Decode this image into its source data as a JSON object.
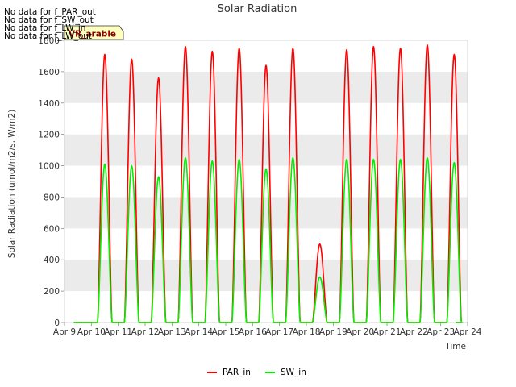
{
  "chart_data": {
    "type": "line",
    "title": "Solar Radiation",
    "xlabel": "Time",
    "ylabel": "Solar Radiation (umol/m2/s, W/m2)",
    "ylim": [
      0,
      1800
    ],
    "xlim": [
      9,
      24
    ],
    "y_ticks": [
      0,
      200,
      400,
      600,
      800,
      1000,
      1200,
      1400,
      1600,
      1800
    ],
    "x_ticks": [
      "Apr 9",
      "Apr 10",
      "Apr 11",
      "Apr 12",
      "Apr 13",
      "Apr 14",
      "Apr 15",
      "Apr 16",
      "Apr 17",
      "Apr 18",
      "Apr 19",
      "Apr 20",
      "Apr 21",
      "Apr 22",
      "Apr 23",
      "Apr 24"
    ],
    "grid": "horizontal bands",
    "legend_position": "bottom-center",
    "no_data_messages": [
      "No data for f_PAR_out",
      "No data for f_SW_out",
      "No data for f_LW_in",
      "No data for f_LW_out"
    ],
    "badge_text": "VR_arable",
    "series": [
      {
        "name": "PAR_in",
        "color": "#ff0000",
        "day_peaks": [
          {
            "day": "Apr 10",
            "peak": 1710
          },
          {
            "day": "Apr 11",
            "peak": 1680
          },
          {
            "day": "Apr 12",
            "peak": 1560
          },
          {
            "day": "Apr 13",
            "peak": 1760
          },
          {
            "day": "Apr 14",
            "peak": 1730
          },
          {
            "day": "Apr 15",
            "peak": 1750
          },
          {
            "day": "Apr 16",
            "peak": 1640
          },
          {
            "day": "Apr 17",
            "peak": 1750
          },
          {
            "day": "Apr 18",
            "peak": 500
          },
          {
            "day": "Apr 19",
            "peak": 1740
          },
          {
            "day": "Apr 20",
            "peak": 1760
          },
          {
            "day": "Apr 21",
            "peak": 1750
          },
          {
            "day": "Apr 22",
            "peak": 1770
          },
          {
            "day": "Apr 23",
            "peak": 1710
          }
        ]
      },
      {
        "name": "SW_in",
        "color": "#00ee00",
        "day_peaks": [
          {
            "day": "Apr 10",
            "peak": 1010
          },
          {
            "day": "Apr 11",
            "peak": 1000
          },
          {
            "day": "Apr 12",
            "peak": 930
          },
          {
            "day": "Apr 13",
            "peak": 1050
          },
          {
            "day": "Apr 14",
            "peak": 1030
          },
          {
            "day": "Apr 15",
            "peak": 1040
          },
          {
            "day": "Apr 16",
            "peak": 980
          },
          {
            "day": "Apr 17",
            "peak": 1050
          },
          {
            "day": "Apr 18",
            "peak": 290
          },
          {
            "day": "Apr 19",
            "peak": 1040
          },
          {
            "day": "Apr 20",
            "peak": 1040
          },
          {
            "day": "Apr 21",
            "peak": 1040
          },
          {
            "day": "Apr 22",
            "peak": 1050
          },
          {
            "day": "Apr 23",
            "peak": 1020
          }
        ]
      }
    ]
  },
  "colors": {
    "band": "#ebebeb",
    "background": "#ffffff",
    "axis": "#aaaaaa",
    "badge_fill": "#ffffc0"
  }
}
